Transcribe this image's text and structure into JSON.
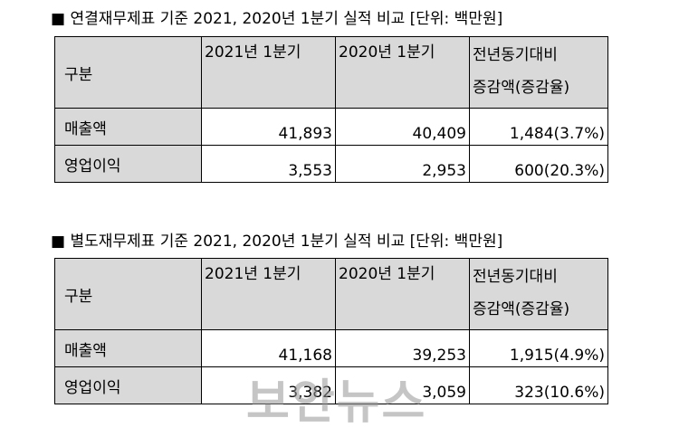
{
  "sections": [
    {
      "title": "■ 연결재무제표 기준 2021, 2020년 1분기 실적 비교 [단위: 백만원]",
      "table": {
        "header": [
          "구분",
          "2021년 1분기",
          "2020년 1분기",
          [
            "전년동기대비",
            "증감액(증감율)"
          ]
        ],
        "rows": [
          [
            "매출액",
            "41,893",
            "40,409",
            "1,484(3.7%)"
          ],
          [
            "영업이익",
            "3,553",
            "2,953",
            "600(20.3%)"
          ]
        ]
      }
    },
    {
      "title": "■ 별도재무제표 기준 2021, 2020년 1분기 실적 비교 [단위: 백만원]",
      "table": {
        "header": [
          "구분",
          "2021년 1분기",
          "2020년 1분기",
          [
            "전년동기대비",
            "증감액(증감율)"
          ]
        ],
        "rows": [
          [
            "매출액",
            "41,168",
            "39,253",
            "1,915(4.9%)"
          ],
          [
            "영업이익",
            "3,382",
            "3,059",
            "323(10.6%)"
          ]
        ]
      }
    }
  ],
  "watermark": "보안뉴스"
}
